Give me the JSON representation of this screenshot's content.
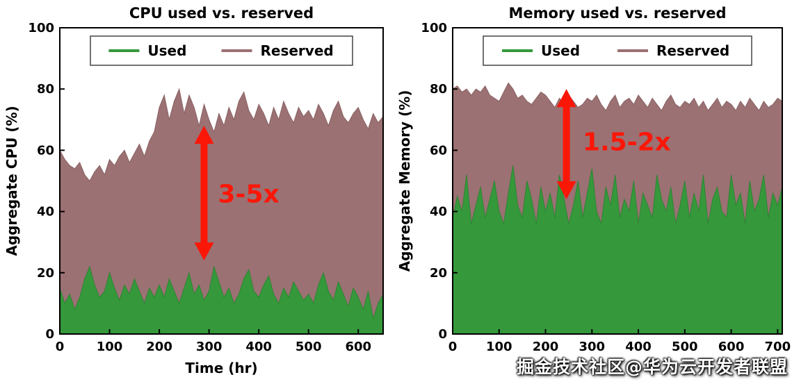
{
  "watermark": "掘金技术社区@华为云开发者联盟",
  "colors": {
    "used": "#35993b",
    "reserved": "#9b7173",
    "reserved_edge": "#8a6264",
    "used_edge": "#2d8433",
    "arrow": "#fb1708",
    "axis": "#000000",
    "legend_border": "#444444"
  },
  "chart_data": [
    {
      "type": "area",
      "title": "CPU used vs. reserved",
      "xlabel": "Time (hr)",
      "ylabel": "Aggregate CPU (%)",
      "xlim": [
        0,
        650
      ],
      "ylim": [
        0,
        100
      ],
      "xticks": [
        0,
        100,
        200,
        300,
        400,
        500,
        600
      ],
      "yticks": [
        0,
        20,
        40,
        60,
        80,
        100
      ],
      "x_step": 10,
      "legend": [
        {
          "label": "Used",
          "color_key": "used"
        },
        {
          "label": "Reserved",
          "color_key": "reserved"
        }
      ],
      "series": [
        {
          "name": "Reserved",
          "color_key": "reserved",
          "edge_key": "reserved_edge",
          "values": [
            60,
            57,
            55,
            54,
            56,
            52,
            50,
            53,
            55,
            52,
            57,
            55,
            58,
            60,
            56,
            59,
            62,
            58,
            63,
            66,
            74,
            78,
            70,
            76,
            80,
            72,
            78,
            74,
            68,
            75,
            70,
            66,
            72,
            68,
            74,
            70,
            76,
            79,
            73,
            70,
            75,
            72,
            68,
            74,
            70,
            76,
            72,
            69,
            74,
            71,
            73,
            70,
            75,
            72,
            68,
            73,
            76,
            71,
            69,
            72,
            74,
            70,
            67,
            72,
            69,
            71
          ]
        },
        {
          "name": "Used",
          "color_key": "used",
          "edge_key": "used_edge",
          "values": [
            15,
            10,
            13,
            8,
            12,
            18,
            22,
            16,
            12,
            14,
            20,
            15,
            11,
            16,
            13,
            18,
            14,
            10,
            15,
            12,
            16,
            12,
            18,
            14,
            10,
            15,
            20,
            13,
            16,
            11,
            14,
            22,
            17,
            12,
            15,
            10,
            13,
            18,
            21,
            14,
            12,
            16,
            19,
            13,
            10,
            15,
            12,
            17,
            14,
            11,
            13,
            10,
            16,
            20,
            14,
            11,
            17,
            13,
            9,
            15,
            12,
            8,
            14,
            5,
            10,
            13
          ]
        }
      ],
      "annotation": {
        "label": "3-5x",
        "x": 290,
        "y_from": 24,
        "y_to": 68,
        "label_x": 318,
        "label_y": 43
      }
    },
    {
      "type": "area",
      "title": "Memory used vs. reserved",
      "xlabel": "",
      "ylabel": "Aggregate Memory (%)",
      "xlim": [
        0,
        710
      ],
      "ylim": [
        0,
        100
      ],
      "xticks": [
        0,
        100,
        200,
        300,
        400,
        500,
        600,
        700
      ],
      "yticks": [
        0,
        20,
        40,
        60,
        80,
        100
      ],
      "x_step": 10,
      "legend": [
        {
          "label": "Used",
          "color_key": "used"
        },
        {
          "label": "Reserved",
          "color_key": "reserved"
        }
      ],
      "series": [
        {
          "name": "Reserved",
          "color_key": "reserved",
          "edge_key": "reserved_edge",
          "values": [
            80,
            81,
            79,
            80,
            78,
            80,
            79,
            81,
            78,
            77,
            76,
            79,
            82,
            80,
            77,
            78,
            76,
            75,
            77,
            79,
            78,
            76,
            74,
            77,
            75,
            78,
            76,
            74,
            75,
            77,
            76,
            78,
            75,
            73,
            76,
            78,
            74,
            76,
            77,
            75,
            78,
            76,
            74,
            77,
            75,
            73,
            76,
            78,
            75,
            74,
            76,
            75,
            77,
            74,
            76,
            73,
            75,
            77,
            74,
            76,
            75,
            73,
            76,
            74,
            77,
            75,
            73,
            76,
            74,
            75,
            77,
            76
          ]
        },
        {
          "name": "Used",
          "color_key": "used",
          "edge_key": "used_edge",
          "values": [
            38,
            45,
            40,
            52,
            36,
            42,
            48,
            38,
            44,
            50,
            40,
            36,
            46,
            55,
            42,
            38,
            50,
            44,
            36,
            48,
            40,
            46,
            38,
            52,
            44,
            36,
            42,
            50,
            38,
            46,
            54,
            40,
            36,
            48,
            42,
            52,
            38,
            44,
            40,
            50,
            36,
            46,
            42,
            38,
            52,
            44,
            40,
            48,
            36,
            42,
            50,
            38,
            46,
            40,
            52,
            36,
            44,
            48,
            40,
            38,
            52,
            42,
            46,
            36,
            50,
            40,
            44,
            52,
            38,
            46,
            42,
            48
          ]
        }
      ],
      "annotation": {
        "label": "1.5-2x",
        "x": 245,
        "y_from": 44,
        "y_to": 80,
        "label_x": 280,
        "label_y": 60
      }
    }
  ]
}
